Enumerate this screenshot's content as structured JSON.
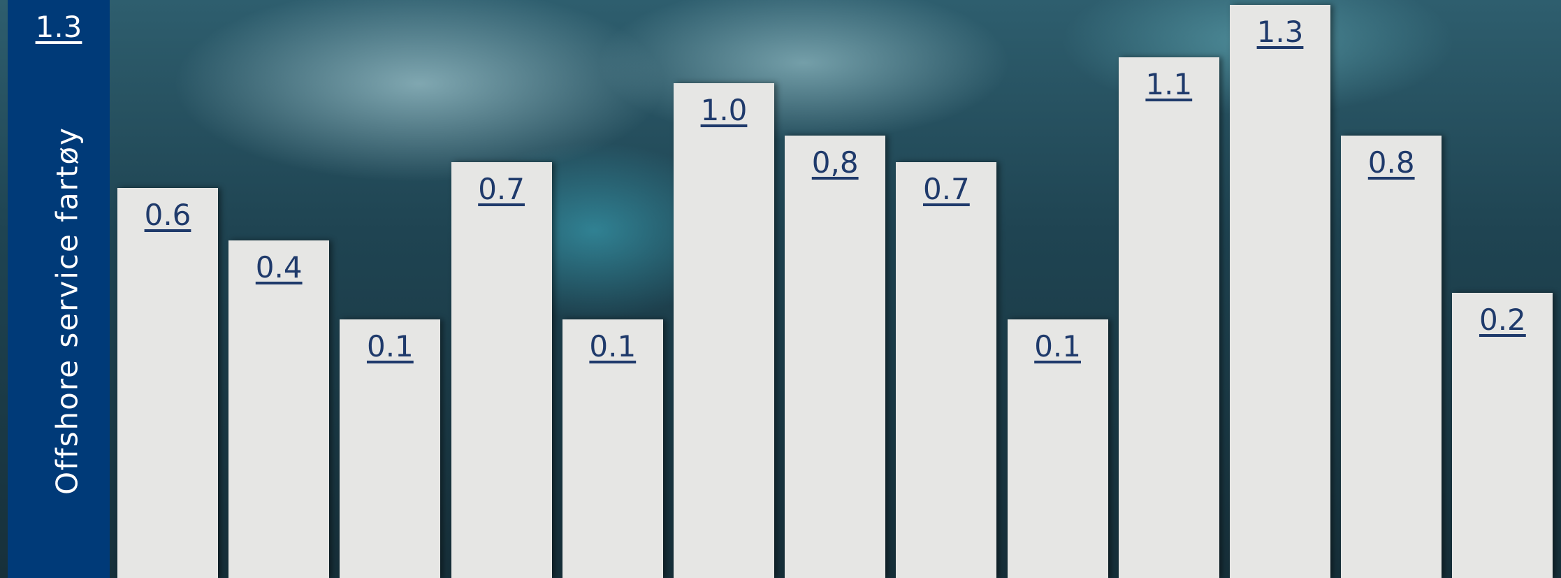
{
  "chart_data": {
    "type": "bar",
    "highlight": {
      "title": "Offshore service fartøy",
      "value": 1.3,
      "value_label": "1.3"
    },
    "values": [
      0.6,
      0.4,
      0.1,
      0.7,
      0.1,
      1.0,
      0.8,
      0.7,
      0.1,
      1.1,
      1.3,
      0.8,
      0.2
    ],
    "value_labels": [
      "0.6",
      "0.4",
      "0.1",
      "0.7",
      "0.1",
      "1.0",
      "0,8",
      "0.7",
      "0.1",
      "1.1",
      "1.3",
      "0.8",
      "0.2"
    ],
    "color": "#e6e6e4",
    "highlight_color": "#003a78"
  }
}
